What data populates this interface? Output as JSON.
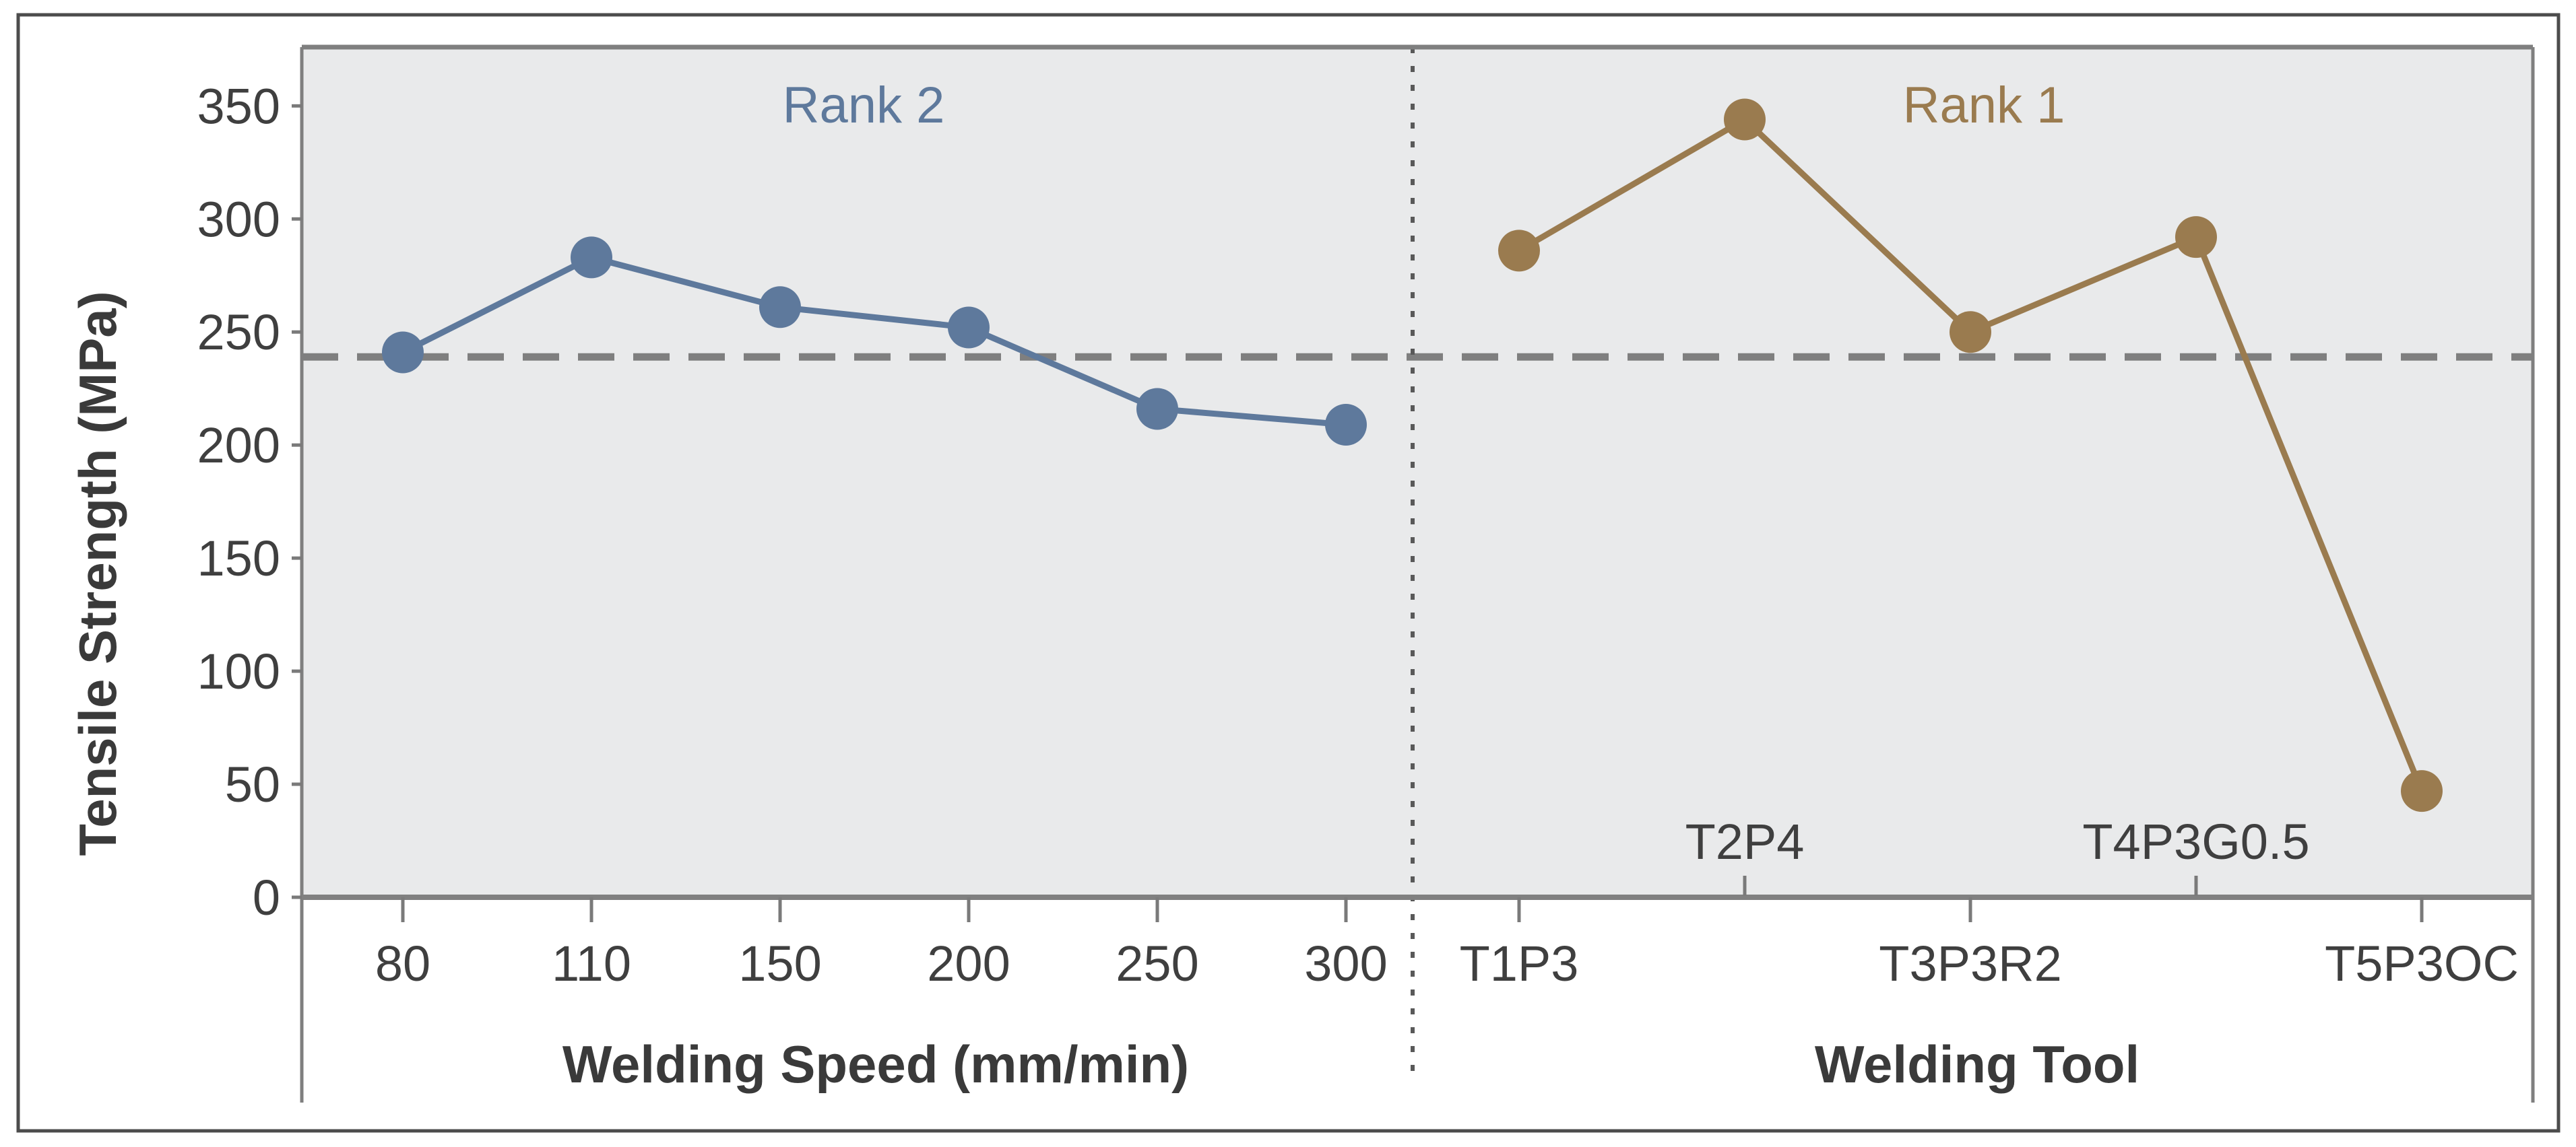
{
  "chart_data": {
    "type": "line",
    "title": "",
    "ylabel": "Tensile Strength (MPa)",
    "ylim": [
      0,
      376
    ],
    "yticks": [
      0,
      50,
      100,
      150,
      200,
      250,
      300,
      350
    ],
    "grid": false,
    "legend_position": "none",
    "plot_background": "#E9EAEB",
    "reference_line": {
      "value": 239,
      "style": "dashed",
      "color": "#7f7f7f"
    },
    "separator": {
      "style": "dotted-vertical",
      "color": "#595959"
    },
    "panels": [
      {
        "label": "Rank 2",
        "xlabel": "Welding Speed (mm/min)",
        "color": "#5E799C",
        "categories": [
          "80",
          "110",
          "150",
          "200",
          "250",
          "300"
        ],
        "values": [
          241,
          283,
          261,
          252,
          216,
          209
        ],
        "staggered_labels": false
      },
      {
        "label": "Rank 1",
        "xlabel": "Welding Tool",
        "color": "#9A7B4F",
        "categories": [
          "T1P3",
          "T2P4",
          "T3P3R2",
          "T4P3G0.5",
          "T5P3OC"
        ],
        "values": [
          286,
          344,
          250,
          292,
          47
        ],
        "staggered_labels": true
      }
    ]
  }
}
